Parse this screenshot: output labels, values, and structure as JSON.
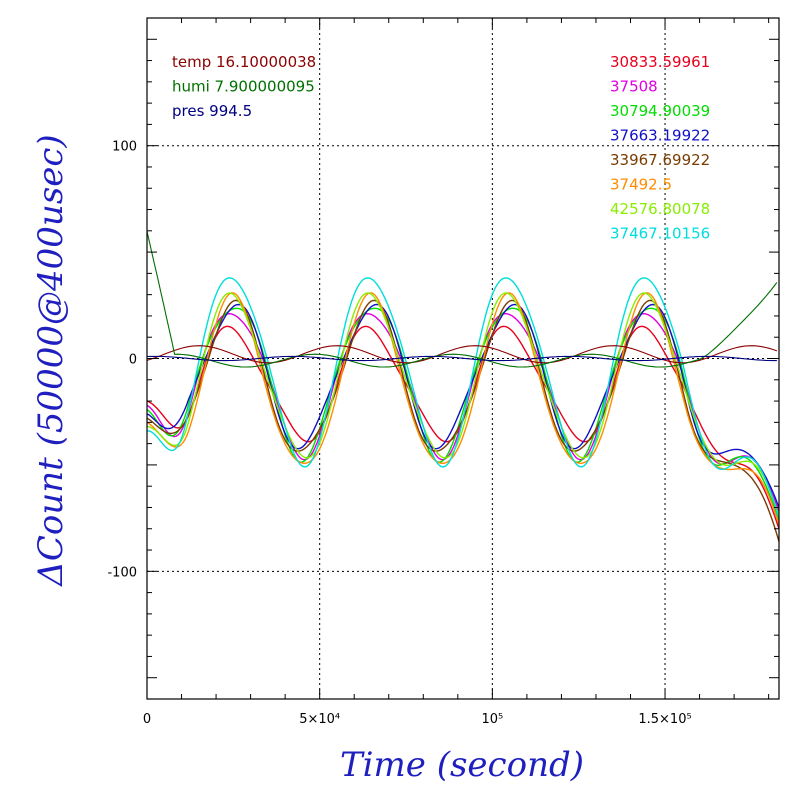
{
  "chart_data": {
    "type": "line",
    "title": "",
    "xlabel": "Time (second)",
    "ylabel": "ΔCount (50000@400usec)",
    "xlim": [
      0,
      183000
    ],
    "ylim": [
      -160,
      160
    ],
    "grid": true,
    "x_ticks": [
      {
        "value": 0,
        "label": "0"
      },
      {
        "value": 50000,
        "label": "5×10⁴"
      },
      {
        "value": 100000,
        "label": "10⁵"
      },
      {
        "value": 150000,
        "label": "1.5×10⁵"
      }
    ],
    "y_ticks": [
      {
        "value": 100,
        "label": "100"
      },
      {
        "value": 0,
        "label": "0"
      },
      {
        "value": -100,
        "label": "-100"
      }
    ],
    "env_legend": [
      {
        "label": "temp 16.10000038",
        "color": "#8b0000"
      },
      {
        "label": "humi 7.900000095",
        "color": "#007000"
      },
      {
        "label": "pres 994.5",
        "color": "#000080"
      }
    ],
    "series": [
      {
        "name": "30833.59961",
        "color": "#e8001c",
        "amp": 26,
        "offset": -12,
        "end": -80
      },
      {
        "name": "37508",
        "color": "#e000e0",
        "amp": 34,
        "offset": -10,
        "end": -72
      },
      {
        "name": "30794.90039",
        "color": "#00dd00",
        "amp": 36,
        "offset": -9,
        "end": -76
      },
      {
        "name": "37663.19922",
        "color": "#1010c8",
        "amp": 33,
        "offset": -8,
        "end": -70
      },
      {
        "name": "33967.69922",
        "color": "#7a3c00",
        "amp": 35,
        "offset": -11,
        "end": -86
      },
      {
        "name": "37492.5",
        "color": "#ff8c00",
        "amp": 40,
        "offset": -13,
        "end": -78
      },
      {
        "name": "42576.80078",
        "color": "#88ee00",
        "amp": 38,
        "offset": -9,
        "end": -74
      },
      {
        "name": "37467.10156",
        "color": "#00dddd",
        "amp": 44,
        "offset": -4,
        "end": -75
      }
    ],
    "env_series": {
      "temp": {
        "color": "#8b0000",
        "amp": 4,
        "offset": 2
      },
      "humi": {
        "color": "#007000",
        "amp": 3,
        "offset": -1
      },
      "pres": {
        "color": "#000080",
        "amp": 1,
        "offset": 0
      }
    }
  }
}
